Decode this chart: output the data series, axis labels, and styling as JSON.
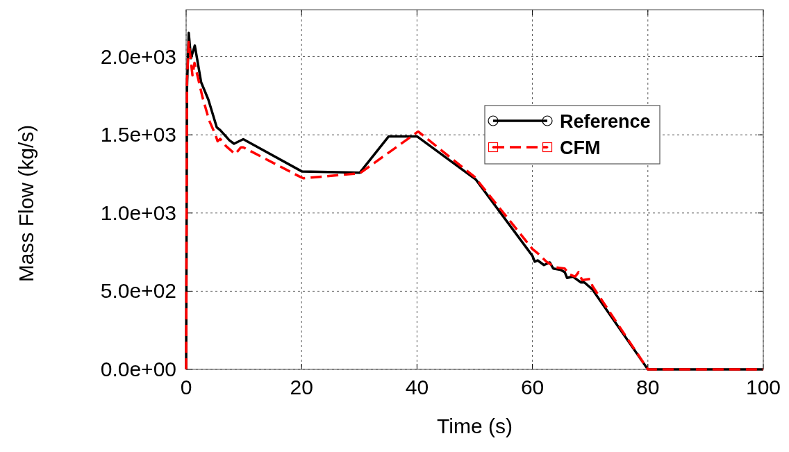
{
  "chart_data": {
    "type": "line",
    "xlabel": "Time (s)",
    "ylabel": "Mass Flow (kg/s)",
    "xlim": [
      0,
      100
    ],
    "ylim": [
      0,
      2300
    ],
    "xticks": [
      0,
      20,
      40,
      60,
      80,
      100
    ],
    "yticks": [
      {
        "value": 0,
        "label": "0.0e+00"
      },
      {
        "value": 500,
        "label": "5.0e+02"
      },
      {
        "value": 1000,
        "label": "1.0e+03"
      },
      {
        "value": 1500,
        "label": "1.5e+03"
      },
      {
        "value": 2000,
        "label": "2.0e+03"
      }
    ],
    "grid": true,
    "legend": "top right",
    "series": [
      {
        "name": "Reference",
        "color": "#000000",
        "line_style": "solid",
        "x": [
          0,
          0.15,
          0.45,
          0.84,
          1.5,
          2.6,
          3.85,
          5.3,
          5.9,
          7.5,
          8.3,
          9.9,
          20.1,
          30.1,
          35.1,
          40,
          50.2,
          60,
          60.4,
          60.9,
          62,
          63,
          63.6,
          64.8,
          65.6,
          66,
          67,
          68.4,
          69,
          70.4,
          80,
          100
        ],
        "values": [
          0,
          1800,
          2152,
          1990,
          2071,
          1836,
          1725,
          1548,
          1530,
          1465,
          1443,
          1472,
          1265,
          1258,
          1490,
          1490,
          1214,
          726,
          689,
          697,
          667,
          684,
          645,
          637,
          622,
          585,
          593,
          556,
          556,
          511,
          0,
          0
        ]
      },
      {
        "name": "CFM",
        "color": "#ff0000",
        "line_style": "dashed",
        "x": [
          0,
          0.15,
          0.45,
          1.1,
          1.45,
          2.85,
          4,
          5.05,
          5.45,
          5.9,
          6.9,
          8.5,
          9.5,
          9.9,
          19.5,
          20.3,
          30.1,
          40.2,
          50,
          60,
          61,
          62.4,
          64,
          65.6,
          66.4,
          67.4,
          68,
          68.6,
          70,
          70.4,
          80,
          100
        ],
        "values": [
          0,
          1850,
          2093,
          1880,
          1960,
          1738,
          1591,
          1503,
          1459,
          1474,
          1428,
          1376,
          1420,
          1420,
          1236,
          1222,
          1254,
          1521,
          1230,
          770,
          740,
          689,
          652,
          645,
          607,
          593,
          622,
          571,
          578,
          533,
          0,
          0
        ]
      }
    ]
  }
}
